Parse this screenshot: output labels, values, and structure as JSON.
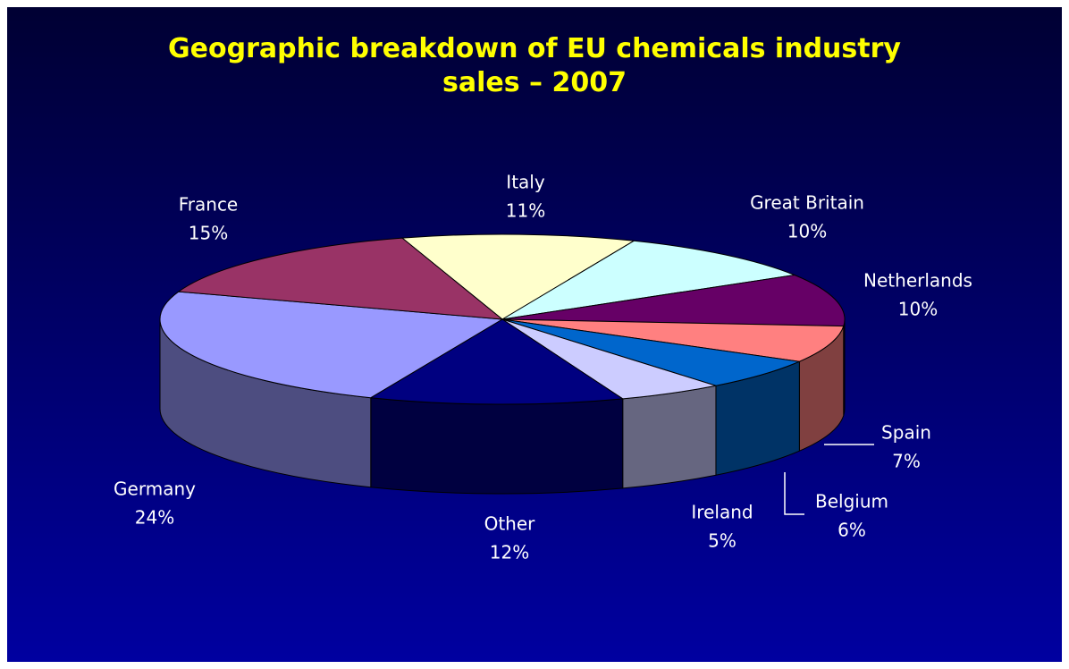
{
  "chart_data": {
    "type": "pie3d",
    "title": "Geographic breakdown of EU chemicals industry sales – 2007",
    "categories": [
      "Italy",
      "Great Britain",
      "Netherlands",
      "Spain",
      "Belgium",
      "Ireland",
      "Other",
      "Germany",
      "France"
    ],
    "values": [
      11,
      10,
      10,
      7,
      6,
      5,
      12,
      24,
      15
    ],
    "value_labels": [
      "11%",
      "10%",
      "10%",
      "7%",
      "6%",
      "5%",
      "12%",
      "24%",
      "15%"
    ],
    "colors": [
      "#ffffcc",
      "#ccffff",
      "#660066",
      "#ff8080",
      "#0066cc",
      "#ccccff",
      "#000080",
      "#9999ff",
      "#993366"
    ]
  }
}
